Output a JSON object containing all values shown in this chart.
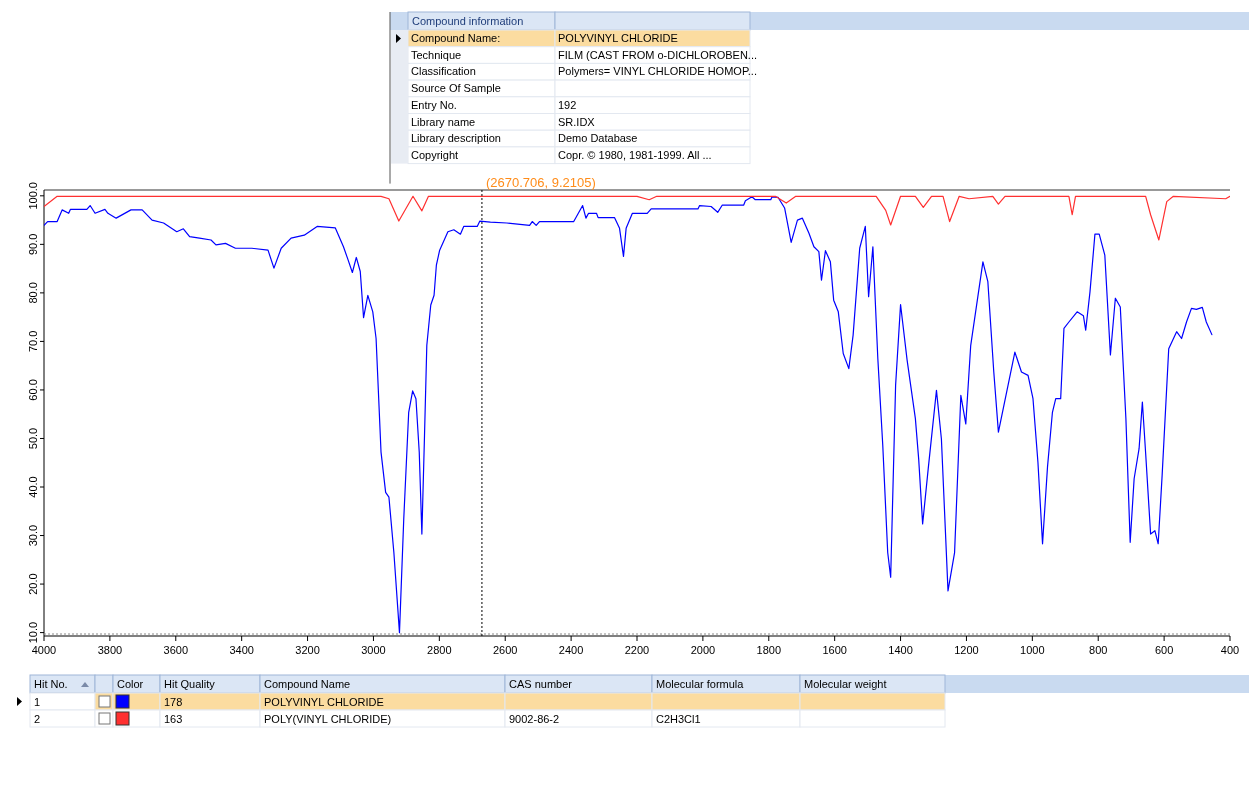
{
  "chart_data": {
    "type": "line",
    "xlim": [
      4000,
      400
    ],
    "ylim": [
      9.3,
      101.2
    ],
    "xticks": [
      4000,
      3800,
      3600,
      3400,
      3200,
      3000,
      2800,
      2600,
      2400,
      2200,
      2000,
      1800,
      1600,
      1400,
      1200,
      1000,
      800,
      600,
      400
    ],
    "yticks": [
      {
        "value": 10,
        "label": "10.0"
      },
      {
        "value": 20,
        "label": "20.0"
      },
      {
        "value": 30,
        "label": "30.0"
      },
      {
        "value": 40,
        "label": "40.0"
      },
      {
        "value": 50,
        "label": "50.0"
      },
      {
        "value": 60,
        "label": "60.0"
      },
      {
        "value": 70,
        "label": "70.0"
      },
      {
        "value": 80,
        "label": "80.0"
      },
      {
        "value": 90,
        "label": "90.0"
      },
      {
        "value": 100,
        "label": "100.0"
      }
    ],
    "grid": false,
    "ref_lines": [
      {
        "axis": "x",
        "value": 2670.706,
        "label": "(2670.706, 9.2105)",
        "color": "#000000",
        "line_style": "dotted"
      }
    ],
    "series": [
      {
        "color": "#0000ff",
        "x": [
          4000,
          3989,
          3960,
          3945,
          3925,
          3920,
          3870,
          3860,
          3845,
          3815,
          3806,
          3781,
          3736,
          3702,
          3672,
          3637,
          3597,
          3577,
          3558,
          3528,
          3493,
          3478,
          3449,
          3419,
          3369,
          3320,
          3302,
          3280,
          3250,
          3210,
          3171,
          3116,
          3091,
          3077,
          3064,
          3052,
          3040,
          3030,
          3017,
          3002,
          2992,
          2977,
          2963,
          2953,
          2938,
          2921,
          2908,
          2893,
          2881,
          2871,
          2861,
          2853,
          2845,
          2838,
          2826,
          2816,
          2809,
          2799,
          2774,
          2756,
          2736,
          2726,
          2685,
          2677,
          2645,
          2595,
          2526,
          2518,
          2506,
          2496,
          2392,
          2365,
          2355,
          2347,
          2323,
          2318,
          2268,
          2253,
          2241,
          2233,
          2214,
          2169,
          2157,
          2139,
          2015,
          2010,
          1975,
          1955,
          1941,
          1876,
          1871,
          1851,
          1841,
          1794,
          1790,
          1772,
          1752,
          1732,
          1713,
          1698,
          1678,
          1663,
          1648,
          1640,
          1628,
          1613,
          1603,
          1589,
          1574,
          1557,
          1544,
          1524,
          1507,
          1497,
          1484,
          1469,
          1454,
          1439,
          1430,
          1415,
          1400,
          1380,
          1355,
          1345,
          1333,
          1316,
          1291,
          1276,
          1256,
          1236,
          1217,
          1202,
          1187,
          1150,
          1135,
          1117,
          1103,
          1053,
          1033,
          1013,
          998,
          983,
          969,
          954,
          939,
          929,
          914,
          904,
          889,
          864,
          845,
          838,
          825,
          810,
          797,
          780,
          763,
          748,
          733,
          716,
          703,
          691,
          676,
          666,
          656,
          641,
          628,
          618,
          606,
          586,
          562,
          547,
          532,
          517,
          502,
          484,
          472,
          455
        ],
        "values": [
          93.9,
          94.7,
          94.7,
          97.1,
          96.4,
          97.2,
          97.2,
          98.0,
          96.4,
          97.2,
          96.4,
          95.4,
          97.1,
          97.1,
          95.0,
          94.4,
          92.6,
          93.2,
          91.6,
          91.3,
          90.9,
          89.9,
          90.2,
          89.2,
          89.2,
          88.8,
          85.1,
          89.2,
          91.3,
          91.9,
          93.7,
          93.4,
          89.5,
          86.8,
          84.2,
          87.3,
          84.4,
          74.9,
          79.5,
          76.1,
          70.6,
          47.2,
          38.9,
          37.9,
          26.5,
          10.0,
          33.4,
          55.4,
          59.8,
          58.2,
          47.2,
          30.3,
          50.6,
          69.2,
          77.5,
          79.5,
          85.7,
          88.8,
          92.6,
          93.0,
          92.1,
          93.7,
          93.7,
          94.8,
          94.6,
          94.4,
          93.9,
          94.7,
          93.9,
          94.7,
          94.7,
          98.0,
          95.4,
          96.4,
          96.4,
          95.5,
          95.5,
          93.3,
          87.5,
          93.3,
          96.4,
          96.4,
          97.3,
          97.3,
          97.3,
          98.0,
          97.8,
          96.6,
          98.1,
          98.1,
          99.0,
          99.8,
          99.2,
          99.2,
          99.8,
          99.7,
          97.5,
          90.4,
          95.0,
          95.4,
          92.3,
          89.5,
          88.5,
          82.6,
          88.7,
          86.4,
          78.5,
          76.1,
          67.5,
          64.4,
          71.3,
          89.2,
          93.7,
          79.2,
          89.5,
          66.5,
          48.6,
          26.5,
          21.4,
          61.0,
          77.6,
          66.1,
          54.1,
          45.8,
          32.4,
          43.8,
          59.9,
          49.9,
          18.6,
          26.5,
          58.9,
          53.0,
          69.2,
          86.4,
          82.3,
          63.7,
          51.3,
          67.8,
          63.7,
          63.0,
          58.2,
          45.1,
          28.3,
          44.1,
          55.4,
          58.2,
          58.2,
          72.7,
          74.0,
          76.1,
          75.3,
          72.3,
          80.2,
          92.1,
          92.1,
          87.8,
          67.2,
          78.9,
          77.1,
          54.1,
          28.6,
          41.7,
          47.9,
          57.5,
          46.9,
          30.3,
          31.0,
          28.3,
          42.4,
          68.5,
          72.0,
          70.6,
          74.0,
          76.8,
          76.6,
          77.0,
          74.0,
          71.4
        ]
      },
      {
        "color": "#ff3030",
        "x": [
          4000,
          3960,
          2977,
          2953,
          2923,
          2880,
          2853,
          2833,
          2200,
          2163,
          2140,
          1780,
          1747,
          1718,
          1474,
          1445,
          1430,
          1400,
          1355,
          1331,
          1306,
          1271,
          1251,
          1222,
          1192,
          1120,
          1103,
          1083,
          889,
          879,
          869,
          656,
          641,
          616,
          592,
          572,
          413,
          400
        ],
        "values": [
          97.8,
          99.9,
          99.9,
          99.4,
          94.8,
          99.9,
          96.9,
          99.9,
          99.9,
          99.2,
          99.9,
          99.9,
          98.5,
          99.9,
          99.9,
          97.0,
          94.0,
          99.9,
          99.9,
          97.6,
          99.9,
          99.9,
          94.7,
          99.9,
          99.4,
          99.9,
          98.3,
          99.9,
          99.9,
          96.1,
          99.9,
          99.9,
          96.1,
          90.9,
          98.8,
          99.9,
          99.4,
          99.9
        ]
      }
    ],
    "annotations": [
      "Compound information",
      "Compound Name:",
      "Technique",
      "Classification",
      "Source Of Sample",
      "Entry No.",
      "Library name",
      "Library description",
      "Copyright",
      "POLYVINYL CHLORIDE",
      "FILM (CAST FROM o-DICHLOROBEN...",
      "Polymers= VINYL CHLORIDE HOMOP...",
      "192",
      "SR.IDX",
      "Demo Database",
      "Copr. © 1980, 1981-1999.  All ...",
      "Hit No.",
      "Color",
      "Hit Quality",
      "Compound Name",
      "CAS number",
      "Molecular formula",
      "Molecular weight",
      "1",
      "178",
      "POLYVINYL CHLORIDE",
      "2",
      "163",
      "POLY(VINYL CHLORIDE)",
      "9002-86-2",
      "C2H3Cl1"
    ]
  }
}
